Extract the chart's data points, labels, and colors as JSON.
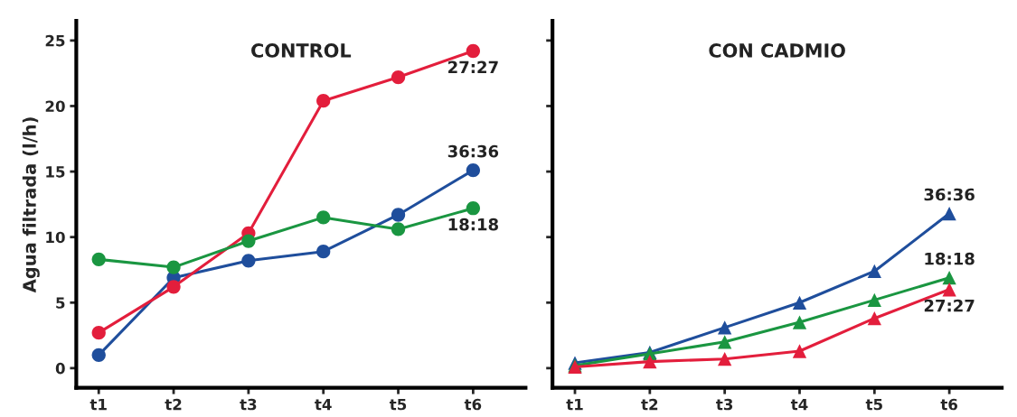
{
  "chart_data": [
    {
      "type": "line",
      "title": "CONTROL",
      "ylabel": "Agua filtrada (l/h)",
      "categories": [
        "t1",
        "t2",
        "t3",
        "t4",
        "t5",
        "t6"
      ],
      "marker": "circle",
      "grid": false,
      "legend": false,
      "ylim": [
        -1.5,
        26.5
      ],
      "yticks": [
        0,
        5,
        10,
        15,
        20,
        25
      ],
      "series": [
        {
          "name": "36:36",
          "color": "#1f4e9c",
          "values": [
            1.0,
            6.9,
            8.2,
            8.9,
            11.7,
            15.1
          ]
        },
        {
          "name": "27:27",
          "color": "#e31e3c",
          "values": [
            2.7,
            6.2,
            10.3,
            20.4,
            22.2,
            24.2
          ]
        },
        {
          "name": "18:18",
          "color": "#1a9641",
          "values": [
            8.3,
            7.7,
            9.7,
            11.5,
            10.6,
            12.2
          ]
        }
      ]
    },
    {
      "type": "line",
      "title": "CON CADMIO",
      "categories": [
        "t1",
        "t2",
        "t3",
        "t4",
        "t5",
        "t6"
      ],
      "marker": "triangle",
      "grid": false,
      "legend": false,
      "ylim": [
        -1.5,
        26.5
      ],
      "yticks": [
        0,
        5,
        10,
        15,
        20,
        25
      ],
      "tick_labels": "x",
      "series": [
        {
          "name": "36:36",
          "color": "#1f4e9c",
          "values": [
            0.4,
            1.2,
            3.1,
            5.0,
            7.4,
            11.8
          ]
        },
        {
          "name": "18:18",
          "color": "#1a9641",
          "values": [
            0.2,
            1.1,
            2.0,
            3.5,
            5.2,
            6.9
          ]
        },
        {
          "name": "27:27",
          "color": "#e31e3c",
          "values": [
            0.1,
            0.5,
            0.7,
            1.3,
            3.8,
            6.0
          ]
        }
      ]
    }
  ]
}
